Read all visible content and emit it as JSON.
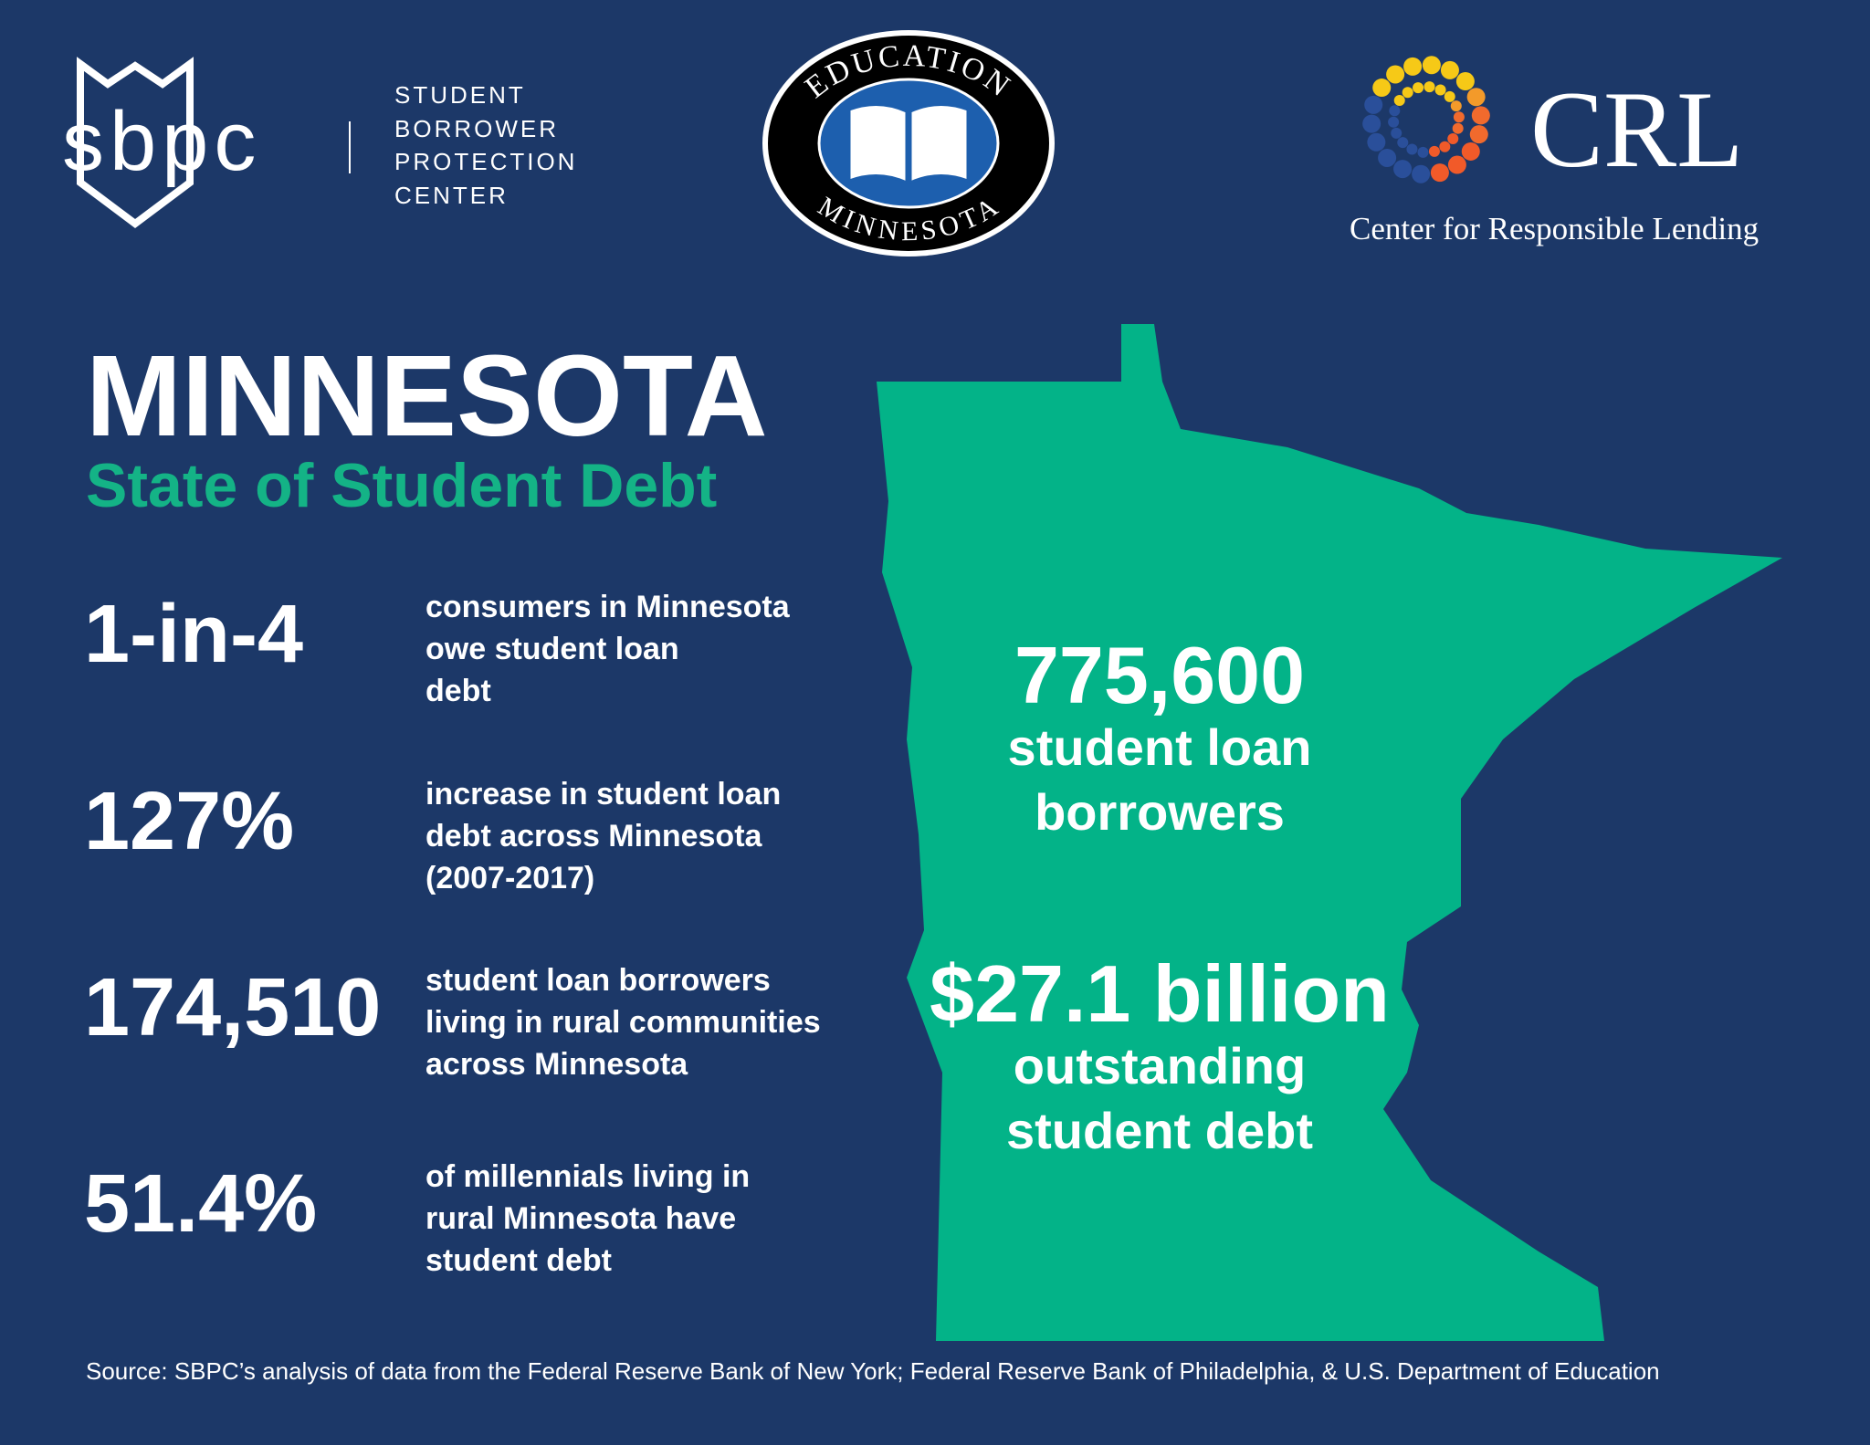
{
  "header": {
    "sbpc_logo": {
      "mark": "sbpc",
      "name_lines": [
        "STUDENT",
        "BORROWER",
        "PROTECTION",
        "CENTER"
      ]
    },
    "education_logo": {
      "top": "EDUCATION",
      "bottom": "MINNESOTA"
    },
    "crl_logo": {
      "mark": "CRL",
      "name": "Center for Responsible Lending"
    }
  },
  "title": "MINNESOTA",
  "subtitle": "State of Student Debt",
  "stats": [
    {
      "figure": "1-in-4",
      "lines": [
        "consumers in Minnesota",
        "owe student loan",
        "debt"
      ]
    },
    {
      "figure": "127%",
      "lines": [
        "increase in student loan",
        "debt across Minnesota",
        "(2007-2017)"
      ]
    },
    {
      "figure": "174,510",
      "lines": [
        "student loan borrowers",
        "living in rural communities",
        "across Minnesota"
      ]
    },
    {
      "figure": "51.4%",
      "lines": [
        "of millennials living in",
        "rural Minnesota have",
        "student debt"
      ]
    }
  ],
  "map_stats": [
    {
      "figure": "775,600",
      "lines": [
        "student loan",
        "borrowers"
      ]
    },
    {
      "figure": "$27.1 billion",
      "lines": [
        "outstanding",
        "student debt"
      ]
    }
  ],
  "source": "Source: SBPC’s analysis of data from the Federal Reserve Bank of New York; Federal Reserve Bank of Philadelphia, & U.S. Department of Education"
}
